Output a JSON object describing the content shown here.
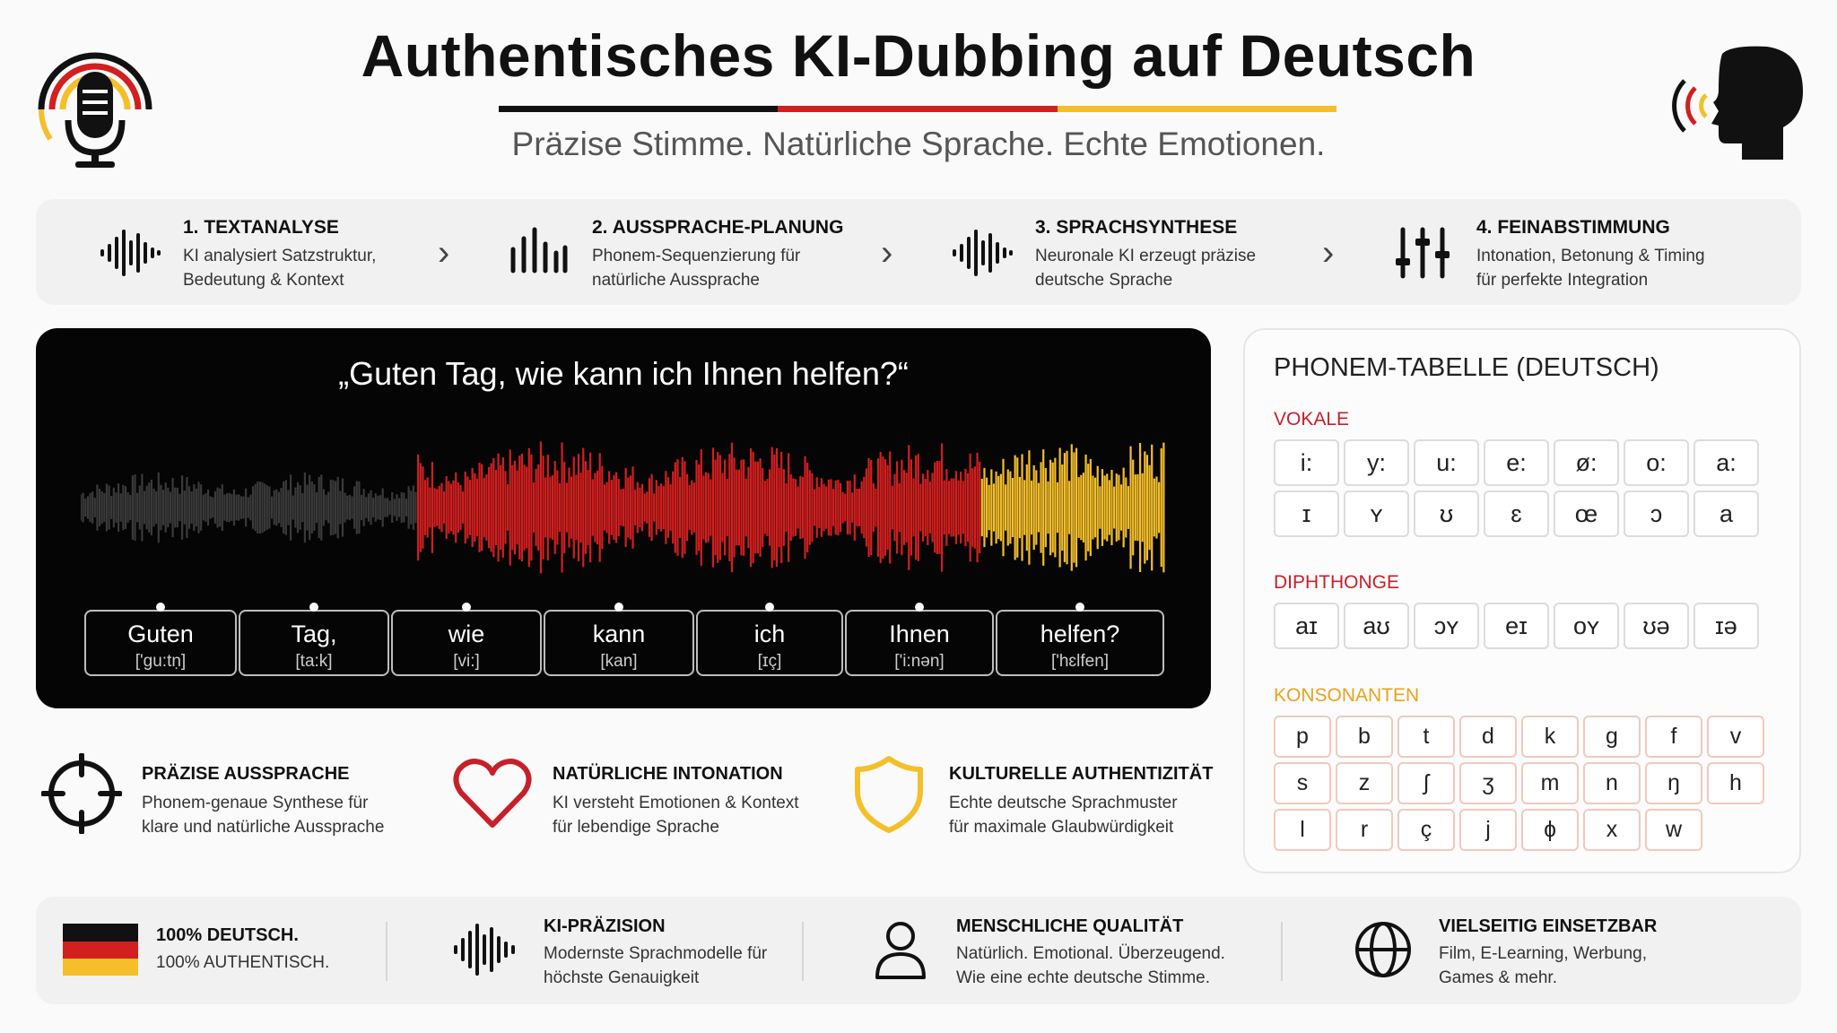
{
  "header": {
    "title": "Authentisches KI-Dubbing auf Deutsch",
    "subtitle": "Präzise Stimme. Natürliche Sprache. Echte Emotionen.",
    "logo_icon": "microphone-icon",
    "speaker_icon": "speaking-head-icon"
  },
  "colors": {
    "black": "#111111",
    "red": "#d21f1f",
    "gold": "#f4bf2a",
    "grey_wave": "#3a3a3a"
  },
  "process": {
    "steps": [
      {
        "title": "1. TEXTANALYSE",
        "text": "KI analysiert Satzstruktur,\nBedeutung & Kontext",
        "icon": "waveform-icon"
      },
      {
        "title": "2. AUSSPRACHE-PLANUNG",
        "text": "Phonem-Sequenzierung für\nnatürliche Aussprache",
        "icon": "bars-icon"
      },
      {
        "title": "3. SPRACHSYNTHESE",
        "text": "Neuronale KI erzeugt präzise\ndeutsche Sprache",
        "icon": "waveform-icon"
      },
      {
        "title": "4. FEINABSTIMMUNG",
        "text": "Intonation, Betonung & Timing\nfür perfekte Integration",
        "icon": "sliders-icon"
      }
    ],
    "chevron": "›"
  },
  "waveform": {
    "quote": "„Guten Tag, wie kann ich Ihnen helfen?“",
    "words": [
      {
        "word": "Guten",
        "ipa": "['gu:tṇ]"
      },
      {
        "word": "Tag,",
        "ipa": "[ta:k]"
      },
      {
        "word": "wie",
        "ipa": "[vi:]"
      },
      {
        "word": "kann",
        "ipa": "[kan]"
      },
      {
        "word": "ich",
        "ipa": "[ɪç]"
      },
      {
        "word": "Ihnen",
        "ipa": "['i:nən]"
      },
      {
        "word": "helfen?",
        "ipa": "['hɛlfen]"
      }
    ]
  },
  "features": [
    {
      "title": "PRÄZISE AUSSPRACHE",
      "text": "Phonem-genaue Synthese für\nklare und natürliche Aussprache",
      "icon": "crosshair-icon"
    },
    {
      "title": "NATÜRLICHE INTONATION",
      "text": "KI versteht Emotionen & Kontext\nfür lebendige Sprache",
      "icon": "heart-icon"
    },
    {
      "title": "KULTURELLE AUTHENTIZITÄT",
      "text": "Echte deutsche Sprachmuster\nfür maximale Glaubwürdigkeit",
      "icon": "shield-icon"
    }
  ],
  "phonemes": {
    "title": "PHONEM-TABELLE (DEUTSCH)",
    "vokale_label": "VOKALE",
    "vokale": [
      "i:",
      "y:",
      "u:",
      "e:",
      "ø:",
      "o:",
      "a:",
      "ɪ",
      "ʏ",
      "ʊ",
      "ɛ",
      "œ",
      "ɔ",
      "a"
    ],
    "diphthonge_label": "DIPHTHONGE",
    "diphthonge": [
      "aɪ",
      "aʊ",
      "ɔʏ",
      "eɪ",
      "oʏ",
      "ʊə",
      "ɪə"
    ],
    "konsonanten_label": "KONSONANTEN",
    "konsonanten": [
      "p",
      "b",
      "t",
      "d",
      "k",
      "g",
      "f",
      "v",
      "s",
      "z",
      "ʃ",
      "ʒ",
      "m",
      "n",
      "ŋ",
      "h",
      "l",
      "r",
      "ç",
      "j",
      "ɸ",
      "x",
      "w"
    ]
  },
  "bottom": [
    {
      "title": "100% DEUTSCH.",
      "text": "100% AUTHENTISCH.",
      "icon": "german-flag-icon"
    },
    {
      "title": "KI-PRÄZISION",
      "text": "Modernste Sprachmodelle für\nhöchste Genauigkeit",
      "icon": "waveform-icon"
    },
    {
      "title": "MENSCHLICHE QUALITÄT",
      "text": "Natürlich. Emotional. Überzeugend.\nWie eine echte deutsche Stimme.",
      "icon": "person-icon"
    },
    {
      "title": "VIELSEITIG EINSETZBAR",
      "text": "Film, E-Learning, Werbung,\nGames & mehr.",
      "icon": "globe-icon"
    }
  ]
}
